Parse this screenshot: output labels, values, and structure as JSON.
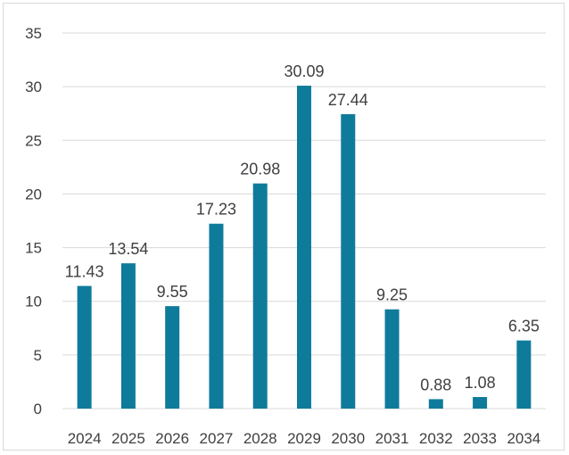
{
  "chart_data": {
    "type": "bar",
    "title": "",
    "xlabel": "",
    "ylabel": "",
    "categories": [
      "2024",
      "2025",
      "2026",
      "2027",
      "2028",
      "2029",
      "2030",
      "2031",
      "2032",
      "2033",
      "2034"
    ],
    "values": [
      11.43,
      13.54,
      9.55,
      17.23,
      20.98,
      30.09,
      27.44,
      9.25,
      0.88,
      1.08,
      6.35
    ],
    "data_labels": [
      "11.43",
      "13.54",
      "9.55",
      "17.23",
      "20.98",
      "30.09",
      "27.44",
      "9.25",
      "0.88",
      "1.08",
      "6.35"
    ],
    "y_ticks": [
      "0",
      "5",
      "10",
      "15",
      "20",
      "25",
      "30",
      "35"
    ],
    "ylim": [
      0,
      35
    ],
    "grid": true,
    "legend": "none",
    "bar_color": "#0f7b9b",
    "grid_color": "#d9d9d9",
    "text_color": "#404040"
  }
}
